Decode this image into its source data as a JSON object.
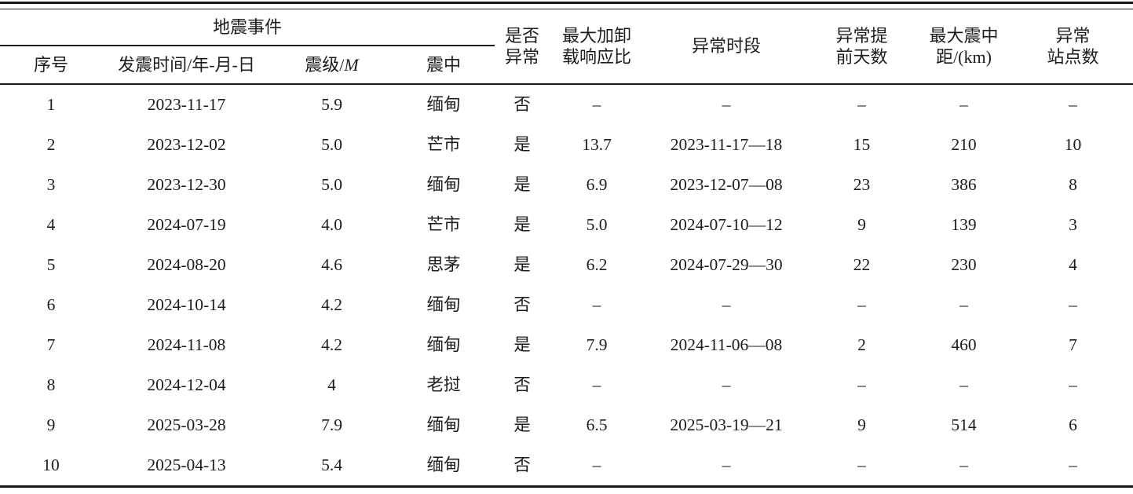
{
  "page": {
    "background_color": "#ffffff",
    "text_color": "#1c1c1c",
    "rule_color": "#161616"
  },
  "table": {
    "header": {
      "group_label": "地震事件",
      "serial": "序号",
      "origin_date": "发震时间/年-月-日",
      "magnitude_prefix": "震级/",
      "magnitude_symbol": "M",
      "epicenter": "震中",
      "is_anomaly": "是否\n异常",
      "max_load_unload_ratio": "最大加卸\n载响应比",
      "anomaly_period": "异常时段",
      "lead_days": "异常提\n前天数",
      "max_epicentral_distance": "最大震中\n距/(km)",
      "anomaly_station_count": "异常\n站点数"
    },
    "empty_marker": "–",
    "rows": [
      [
        "1",
        "2023-11-17",
        "5.9",
        "缅甸",
        "否",
        "–",
        "–",
        "–",
        "–",
        "–"
      ],
      [
        "2",
        "2023-12-02",
        "5.0",
        "芒市",
        "是",
        "13.7",
        "2023-11-17—18",
        "15",
        "210",
        "10"
      ],
      [
        "3",
        "2023-12-30",
        "5.0",
        "缅甸",
        "是",
        "6.9",
        "2023-12-07—08",
        "23",
        "386",
        "8"
      ],
      [
        "4",
        "2024-07-19",
        "4.0",
        "芒市",
        "是",
        "5.0",
        "2024-07-10—12",
        "9",
        "139",
        "3"
      ],
      [
        "5",
        "2024-08-20",
        "4.6",
        "思茅",
        "是",
        "6.2",
        "2024-07-29—30",
        "22",
        "230",
        "4"
      ],
      [
        "6",
        "2024-10-14",
        "4.2",
        "缅甸",
        "否",
        "–",
        "–",
        "–",
        "–",
        "–"
      ],
      [
        "7",
        "2024-11-08",
        "4.2",
        "缅甸",
        "是",
        "7.9",
        "2024-11-06—08",
        "2",
        "460",
        "7"
      ],
      [
        "8",
        "2024-12-04",
        "4",
        "老挝",
        "否",
        "–",
        "–",
        "–",
        "–",
        "–"
      ],
      [
        "9",
        "2025-03-28",
        "7.9",
        "缅甸",
        "是",
        "6.5",
        "2025-03-19—21",
        "9",
        "514",
        "6"
      ],
      [
        "10",
        "2025-04-13",
        "5.4",
        "缅甸",
        "否",
        "–",
        "–",
        "–",
        "–",
        "–"
      ]
    ]
  }
}
